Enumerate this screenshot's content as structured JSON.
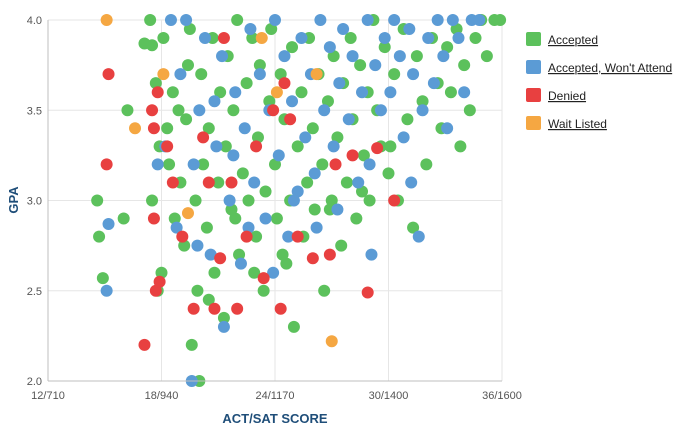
{
  "chart_data": {
    "type": "scatter",
    "xlabel": "ACT/SAT SCORE",
    "ylabel": "GPA",
    "x_ticks": [
      "12/710",
      "18/940",
      "24/1170",
      "30/1400",
      "36/1600"
    ],
    "x_tick_values": [
      12,
      18,
      24,
      30,
      36
    ],
    "y_ticks": [
      "2.0",
      "2.5",
      "3.0",
      "3.5",
      "4.0"
    ],
    "y_tick_values": [
      2.0,
      2.5,
      3.0,
      3.5,
      4.0
    ],
    "xlim": [
      12,
      36
    ],
    "ylim": [
      2.0,
      4.0
    ],
    "grid": true,
    "legend_position": "right",
    "series": [
      {
        "name": "Accepted",
        "color": "#5cc15c",
        "points": [
          [
            14.7,
            2.8
          ],
          [
            14.9,
            2.57
          ],
          [
            14.6,
            3.0
          ],
          [
            16.0,
            2.9
          ],
          [
            16.2,
            3.5
          ],
          [
            17.1,
            3.87
          ],
          [
            17.5,
            3.86
          ],
          [
            17.4,
            4.0
          ],
          [
            17.5,
            3.0
          ],
          [
            17.8,
            2.5
          ],
          [
            17.9,
            3.3
          ],
          [
            18.0,
            2.6
          ],
          [
            18.1,
            3.9
          ],
          [
            18.4,
            3.2
          ],
          [
            18.6,
            3.6
          ],
          [
            18.7,
            2.9
          ],
          [
            18.9,
            3.5
          ],
          [
            19.0,
            3.1
          ],
          [
            19.2,
            2.75
          ],
          [
            19.3,
            3.45
          ],
          [
            19.4,
            3.75
          ],
          [
            19.5,
            3.95
          ],
          [
            19.8,
            3.0
          ],
          [
            19.9,
            2.5
          ],
          [
            20.0,
            2.0
          ],
          [
            20.1,
            3.7
          ],
          [
            20.2,
            3.2
          ],
          [
            20.4,
            2.85
          ],
          [
            20.5,
            3.4
          ],
          [
            20.7,
            3.9
          ],
          [
            20.8,
            2.6
          ],
          [
            21.0,
            3.1
          ],
          [
            21.1,
            3.6
          ],
          [
            21.3,
            2.35
          ],
          [
            21.4,
            3.3
          ],
          [
            21.5,
            3.8
          ],
          [
            21.7,
            2.95
          ],
          [
            21.8,
            3.5
          ],
          [
            22.0,
            4.0
          ],
          [
            22.1,
            2.7
          ],
          [
            22.3,
            3.15
          ],
          [
            22.5,
            3.65
          ],
          [
            22.6,
            3.0
          ],
          [
            22.8,
            3.9
          ],
          [
            23.0,
            2.8
          ],
          [
            23.1,
            3.35
          ],
          [
            23.2,
            3.75
          ],
          [
            23.4,
            2.5
          ],
          [
            23.5,
            3.05
          ],
          [
            23.7,
            3.55
          ],
          [
            23.8,
            3.95
          ],
          [
            24.0,
            3.2
          ],
          [
            24.1,
            2.9
          ],
          [
            24.3,
            3.7
          ],
          [
            24.5,
            3.45
          ],
          [
            24.6,
            2.65
          ],
          [
            24.8,
            3.0
          ],
          [
            24.9,
            3.85
          ],
          [
            25.0,
            2.3
          ],
          [
            25.2,
            3.3
          ],
          [
            25.4,
            3.6
          ],
          [
            25.5,
            2.8
          ],
          [
            25.7,
            3.1
          ],
          [
            25.8,
            3.9
          ],
          [
            26.0,
            3.4
          ],
          [
            26.1,
            2.95
          ],
          [
            26.3,
            3.7
          ],
          [
            26.5,
            3.2
          ],
          [
            26.6,
            2.5
          ],
          [
            26.8,
            3.55
          ],
          [
            27.0,
            3.0
          ],
          [
            27.1,
            3.8
          ],
          [
            27.3,
            3.35
          ],
          [
            27.5,
            2.75
          ],
          [
            27.6,
            3.65
          ],
          [
            27.8,
            3.1
          ],
          [
            28.0,
            3.9
          ],
          [
            28.1,
            3.45
          ],
          [
            28.3,
            2.9
          ],
          [
            28.5,
            3.75
          ],
          [
            28.7,
            3.25
          ],
          [
            28.9,
            3.6
          ],
          [
            29.0,
            3.0
          ],
          [
            29.2,
            4.0
          ],
          [
            29.4,
            3.5
          ],
          [
            29.6,
            3.3
          ],
          [
            29.8,
            3.85
          ],
          [
            30.0,
            3.15
          ],
          [
            30.3,
            3.7
          ],
          [
            30.5,
            3.0
          ],
          [
            30.8,
            3.95
          ],
          [
            31.0,
            3.45
          ],
          [
            31.3,
            2.85
          ],
          [
            31.5,
            3.8
          ],
          [
            31.8,
            3.55
          ],
          [
            32.0,
            3.2
          ],
          [
            32.3,
            3.9
          ],
          [
            32.6,
            3.65
          ],
          [
            32.8,
            3.4
          ],
          [
            33.1,
            3.85
          ],
          [
            33.3,
            3.6
          ],
          [
            33.6,
            3.95
          ],
          [
            33.8,
            3.3
          ],
          [
            34.0,
            3.75
          ],
          [
            34.3,
            3.5
          ],
          [
            34.6,
            3.9
          ],
          [
            34.9,
            4.0
          ],
          [
            35.2,
            3.8
          ],
          [
            35.6,
            4.0
          ],
          [
            35.9,
            4.0
          ],
          [
            20.5,
            2.45
          ],
          [
            19.6,
            2.2
          ],
          [
            22.9,
            2.6
          ],
          [
            21.9,
            2.9
          ],
          [
            24.4,
            2.7
          ],
          [
            26.9,
            2.95
          ],
          [
            28.6,
            3.05
          ],
          [
            30.1,
            3.3
          ],
          [
            18.3,
            3.4
          ],
          [
            17.7,
            3.65
          ]
        ]
      },
      {
        "name": "Accepted, Won't Attend",
        "color": "#5b9bd5",
        "points": [
          [
            15.2,
            2.87
          ],
          [
            15.1,
            2.5
          ],
          [
            17.8,
            3.2
          ],
          [
            18.2,
            3.3
          ],
          [
            18.5,
            4.0
          ],
          [
            18.8,
            2.85
          ],
          [
            19.0,
            3.7
          ],
          [
            19.3,
            4.0
          ],
          [
            19.6,
            2.0
          ],
          [
            19.7,
            3.2
          ],
          [
            20.0,
            3.5
          ],
          [
            20.3,
            3.9
          ],
          [
            20.6,
            2.7
          ],
          [
            20.9,
            3.3
          ],
          [
            21.2,
            3.8
          ],
          [
            21.3,
            2.3
          ],
          [
            21.6,
            3.0
          ],
          [
            21.9,
            3.6
          ],
          [
            22.2,
            2.65
          ],
          [
            22.4,
            3.4
          ],
          [
            22.7,
            3.95
          ],
          [
            22.9,
            3.1
          ],
          [
            23.2,
            3.7
          ],
          [
            23.5,
            2.9
          ],
          [
            23.7,
            3.5
          ],
          [
            24.0,
            4.0
          ],
          [
            24.2,
            3.25
          ],
          [
            24.5,
            3.8
          ],
          [
            24.7,
            2.8
          ],
          [
            24.9,
            3.55
          ],
          [
            25.2,
            3.05
          ],
          [
            25.4,
            3.9
          ],
          [
            25.6,
            3.35
          ],
          [
            25.9,
            3.7
          ],
          [
            26.1,
            3.15
          ],
          [
            26.4,
            4.0
          ],
          [
            26.6,
            3.5
          ],
          [
            26.9,
            3.85
          ],
          [
            27.1,
            3.3
          ],
          [
            27.4,
            3.65
          ],
          [
            27.6,
            3.95
          ],
          [
            27.9,
            3.45
          ],
          [
            28.1,
            3.8
          ],
          [
            28.4,
            3.1
          ],
          [
            28.6,
            3.6
          ],
          [
            28.9,
            4.0
          ],
          [
            29.1,
            2.7
          ],
          [
            29.3,
            3.75
          ],
          [
            29.6,
            3.5
          ],
          [
            29.8,
            3.9
          ],
          [
            30.1,
            3.6
          ],
          [
            30.3,
            4.0
          ],
          [
            30.6,
            3.8
          ],
          [
            30.8,
            3.35
          ],
          [
            31.1,
            3.95
          ],
          [
            31.3,
            3.7
          ],
          [
            31.6,
            2.8
          ],
          [
            31.8,
            3.5
          ],
          [
            32.1,
            3.9
          ],
          [
            32.4,
            3.65
          ],
          [
            32.6,
            4.0
          ],
          [
            32.9,
            3.8
          ],
          [
            33.1,
            3.4
          ],
          [
            33.4,
            4.0
          ],
          [
            33.7,
            3.9
          ],
          [
            34.0,
            3.6
          ],
          [
            34.4,
            4.0
          ],
          [
            34.8,
            4.0
          ],
          [
            31.2,
            3.1
          ],
          [
            29.0,
            3.2
          ],
          [
            27.3,
            2.95
          ],
          [
            26.2,
            2.85
          ],
          [
            25.0,
            3.0
          ],
          [
            23.9,
            2.6
          ],
          [
            22.6,
            2.85
          ],
          [
            21.8,
            3.25
          ],
          [
            20.8,
            3.55
          ],
          [
            19.9,
            2.75
          ]
        ]
      },
      {
        "name": "Denied",
        "color": "#e84040",
        "points": [
          [
            15.2,
            3.7
          ],
          [
            15.1,
            3.2
          ],
          [
            17.1,
            2.2
          ],
          [
            17.5,
            3.5
          ],
          [
            17.6,
            3.4
          ],
          [
            17.6,
            2.9
          ],
          [
            17.7,
            2.5
          ],
          [
            17.8,
            3.6
          ],
          [
            17.9,
            2.55
          ],
          [
            18.3,
            3.3
          ],
          [
            18.6,
            3.1
          ],
          [
            19.1,
            2.8
          ],
          [
            19.7,
            2.4
          ],
          [
            20.2,
            3.35
          ],
          [
            20.5,
            3.1
          ],
          [
            20.8,
            2.4
          ],
          [
            21.3,
            3.9
          ],
          [
            21.7,
            3.1
          ],
          [
            22.0,
            2.4
          ],
          [
            22.5,
            2.8
          ],
          [
            23.0,
            3.3
          ],
          [
            23.4,
            2.57
          ],
          [
            23.9,
            3.5
          ],
          [
            24.3,
            2.4
          ],
          [
            24.8,
            3.45
          ],
          [
            25.2,
            2.8
          ],
          [
            26.0,
            2.68
          ],
          [
            26.9,
            2.7
          ],
          [
            27.2,
            3.2
          ],
          [
            28.1,
            3.25
          ],
          [
            28.9,
            2.49
          ],
          [
            29.4,
            3.29
          ],
          [
            30.3,
            3.0
          ],
          [
            24.5,
            3.65
          ],
          [
            21.1,
            2.68
          ]
        ]
      },
      {
        "name": "Wait Listed",
        "color": "#f5a742",
        "points": [
          [
            15.1,
            4.0
          ],
          [
            16.6,
            3.4
          ],
          [
            18.1,
            3.7
          ],
          [
            19.4,
            2.93
          ],
          [
            23.3,
            3.9
          ],
          [
            26.2,
            3.7
          ],
          [
            27.0,
            2.22
          ],
          [
            24.1,
            3.6
          ]
        ]
      }
    ]
  }
}
